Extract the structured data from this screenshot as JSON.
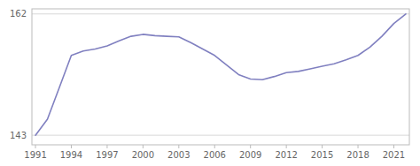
{
  "chart_data": {
    "type": "line",
    "x": [
      1991,
      1992,
      1993,
      1994,
      1995,
      1996,
      1997,
      1998,
      1999,
      2000,
      2001,
      2002,
      2003,
      2004,
      2005,
      2006,
      2007,
      2008,
      2009,
      2010,
      2011,
      2012,
      2013,
      2014,
      2015,
      2016,
      2017,
      2018,
      2019,
      2020,
      2021,
      2022
    ],
    "values": [
      143.0,
      145.5,
      150.5,
      155.5,
      156.2,
      156.5,
      157.0,
      157.8,
      158.5,
      158.8,
      158.6,
      158.5,
      158.4,
      157.5,
      156.5,
      155.5,
      154.0,
      152.5,
      151.8,
      151.7,
      152.2,
      152.8,
      153.0,
      153.4,
      153.8,
      154.2,
      154.8,
      155.5,
      156.8,
      158.5,
      160.5,
      162.0
    ],
    "color": "#8080c0",
    "xlim": [
      1990.7,
      2022.3
    ],
    "ylim": [
      141.5,
      162.8
    ],
    "yticks": [
      143,
      162
    ],
    "xticks": [
      1991,
      1994,
      1997,
      2000,
      2003,
      2006,
      2009,
      2012,
      2015,
      2018,
      2021
    ],
    "grid": true
  }
}
